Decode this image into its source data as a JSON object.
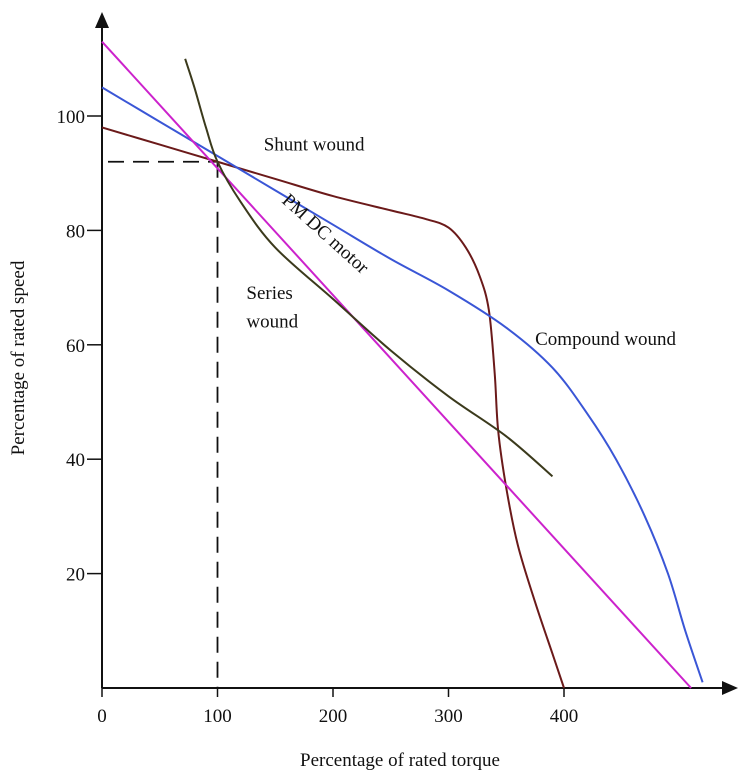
{
  "chart_data": {
    "type": "line",
    "title": "",
    "xlabel": "Percentage of rated torque",
    "ylabel": "Percentage of rated speed",
    "xlim": [
      0,
      550
    ],
    "ylim": [
      0,
      122
    ],
    "x_ticks": [
      {
        "value": 0,
        "label": "0"
      },
      {
        "value": 100,
        "label": "100"
      },
      {
        "value": 200,
        "label": "200"
      },
      {
        "value": 300,
        "label": "300"
      },
      {
        "value": 400,
        "label": "400"
      }
    ],
    "y_ticks": [
      {
        "value": 20,
        "label": "20"
      },
      {
        "value": 40,
        "label": "40"
      },
      {
        "value": 60,
        "label": "60"
      },
      {
        "value": 80,
        "label": "80"
      },
      {
        "value": 100,
        "label": "100"
      }
    ],
    "grid": false,
    "rated_point": {
      "x": 100,
      "y": 92
    },
    "series": [
      {
        "name": "Shunt wound",
        "color": "#6b1a1a",
        "points": [
          [
            0,
            98
          ],
          [
            50,
            95
          ],
          [
            100,
            92
          ],
          [
            150,
            89
          ],
          [
            200,
            86
          ],
          [
            250,
            83.5
          ],
          [
            280,
            82
          ],
          [
            300,
            80.5
          ],
          [
            315,
            77
          ],
          [
            327,
            72
          ],
          [
            335,
            66
          ],
          [
            340,
            55
          ],
          [
            343,
            45
          ],
          [
            350,
            35
          ],
          [
            360,
            25
          ],
          [
            375,
            15
          ],
          [
            390,
            6
          ],
          [
            400,
            0
          ]
        ]
      },
      {
        "name": "Compound wound",
        "color": "#3a56d6",
        "points": [
          [
            0,
            105
          ],
          [
            50,
            99
          ],
          [
            100,
            93
          ],
          [
            150,
            87
          ],
          [
            200,
            81
          ],
          [
            250,
            75
          ],
          [
            300,
            69.5
          ],
          [
            350,
            63
          ],
          [
            390,
            56
          ],
          [
            420,
            48
          ],
          [
            445,
            40
          ],
          [
            470,
            30
          ],
          [
            490,
            20
          ],
          [
            505,
            10
          ],
          [
            520,
            1
          ]
        ]
      },
      {
        "name": "PM DC motor",
        "color": "#cc22cc",
        "points": [
          [
            0,
            113
          ],
          [
            510,
            0
          ]
        ]
      },
      {
        "name": "Series\nwound",
        "color": "#3b3a1c",
        "points": [
          [
            72,
            110
          ],
          [
            80,
            105
          ],
          [
            90,
            98
          ],
          [
            100,
            92
          ],
          [
            120,
            85
          ],
          [
            150,
            77
          ],
          [
            200,
            68
          ],
          [
            250,
            59
          ],
          [
            300,
            51
          ],
          [
            350,
            44
          ],
          [
            390,
            37
          ]
        ]
      }
    ],
    "annotations": [
      {
        "text": "Shunt wound",
        "x": 140,
        "y": 94
      },
      {
        "text": "PM DC motor",
        "x": 155,
        "y": 85,
        "angle": 42
      },
      {
        "text": "Series",
        "x": 125,
        "y": 68
      },
      {
        "text": "wound",
        "x": 125,
        "y": 63
      },
      {
        "text": "Compound wound",
        "x": 375,
        "y": 60
      }
    ]
  }
}
